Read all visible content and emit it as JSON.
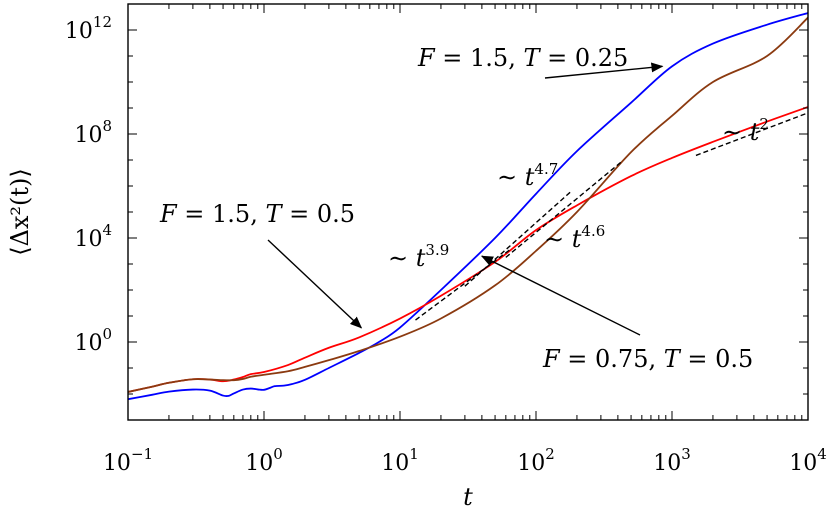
{
  "chart_data": {
    "type": "line",
    "xlabel": "t",
    "ylabel": "⟨Δx²(t)⟩",
    "x_scale": "log",
    "y_scale": "log",
    "xlim": [
      0.1,
      10000
    ],
    "ylim": [
      0.001,
      10000000000000
    ],
    "grid": false,
    "x_ticks": [
      {
        "value": 0.1,
        "base": "10",
        "exp": "−1"
      },
      {
        "value": 1,
        "base": "10",
        "exp": "0"
      },
      {
        "value": 10,
        "base": "10",
        "exp": "1"
      },
      {
        "value": 100,
        "base": "10",
        "exp": "2"
      },
      {
        "value": 1000,
        "base": "10",
        "exp": "3"
      },
      {
        "value": 10000,
        "base": "10",
        "exp": "4"
      }
    ],
    "y_ticks": [
      {
        "value": 1,
        "base": "10",
        "exp": "0"
      },
      {
        "value": 10000,
        "base": "10",
        "exp": "4"
      },
      {
        "value": 100000000,
        "base": "10",
        "exp": "8"
      },
      {
        "value": 1000000000000,
        "base": "10",
        "exp": "12"
      }
    ],
    "series": [
      {
        "name": "F = 1.5, T = 0.25",
        "color": "#0000ff",
        "x": [
          0.1,
          0.15,
          0.2,
          0.3,
          0.4,
          0.5,
          0.55,
          0.6,
          0.7,
          0.8,
          0.9,
          1.0,
          1.1,
          1.2,
          1.4,
          1.6,
          2,
          3,
          5,
          7,
          10,
          20,
          50,
          100,
          200,
          500,
          1000,
          2000,
          5000,
          10000
        ],
        "y": [
          0.0063,
          0.0093,
          0.0123,
          0.0148,
          0.0135,
          0.0087,
          0.0085,
          0.0105,
          0.0148,
          0.0162,
          0.015,
          0.0145,
          0.017,
          0.02,
          0.021,
          0.024,
          0.035,
          0.1,
          0.38,
          1.0,
          3.6,
          100,
          10000,
          500000,
          22000000,
          1600000000,
          40000000000,
          300000000000,
          1600000000000,
          4500000000000
        ]
      },
      {
        "name": "F = 1.5, T = 0.5",
        "color": "#ff0000",
        "x": [
          0.1,
          0.15,
          0.2,
          0.3,
          0.4,
          0.5,
          0.6,
          0.7,
          0.8,
          1.0,
          1.5,
          2,
          3,
          5,
          10,
          20,
          50,
          100,
          200,
          500,
          1000,
          2000,
          5000,
          10000
        ],
        "y": [
          0.012,
          0.019,
          0.027,
          0.037,
          0.036,
          0.031,
          0.036,
          0.045,
          0.058,
          0.07,
          0.13,
          0.25,
          0.6,
          1.5,
          8,
          60,
          1200,
          20000,
          180000,
          2400000,
          12000000,
          50000000,
          300000000,
          1100000000
        ]
      },
      {
        "name": "F = 0.75, T = 0.5",
        "color": "#8b3a10",
        "x": [
          0.1,
          0.15,
          0.2,
          0.3,
          0.4,
          0.5,
          0.6,
          0.7,
          0.8,
          1.0,
          1.5,
          2,
          3,
          5,
          10,
          20,
          50,
          100,
          200,
          500,
          1000,
          2000,
          5000,
          10000
        ],
        "y": [
          0.012,
          0.019,
          0.027,
          0.037,
          0.036,
          0.034,
          0.034,
          0.038,
          0.046,
          0.055,
          0.075,
          0.11,
          0.2,
          0.45,
          1.6,
          8,
          150,
          3200,
          100000,
          20000000,
          500000000,
          10000000000,
          100000000000,
          3000000000000
        ]
      }
    ],
    "slope_guides": [
      {
        "label_base": "t",
        "label_exp": "3.9",
        "x": [
          13,
          65
        ],
        "y": [
          7,
          3700
        ]
      },
      {
        "label_base": "t",
        "label_exp": "4.7",
        "x": [
          30,
          180
        ],
        "y": [
          140,
          600000
        ]
      },
      {
        "label_base": "t",
        "label_exp": "4.6",
        "x": [
          60,
          430
        ],
        "y": [
          1800,
          9000000
        ]
      },
      {
        "label_base": "t",
        "label_exp": "2",
        "x": [
          1500,
          10000
        ],
        "y": [
          15000000,
          650000000
        ]
      }
    ],
    "annotations": [
      {
        "label_f": "1.5",
        "label_t": "0.25",
        "arrow_to": [
          850,
          40000000000
        ]
      },
      {
        "label_f": "1.5",
        "label_t": "0.5",
        "arrow_to": [
          5.2,
          3.5
        ]
      },
      {
        "label_f": "0.75",
        "label_t": "0.5",
        "arrow_to": [
          40,
          2000
        ]
      }
    ]
  }
}
